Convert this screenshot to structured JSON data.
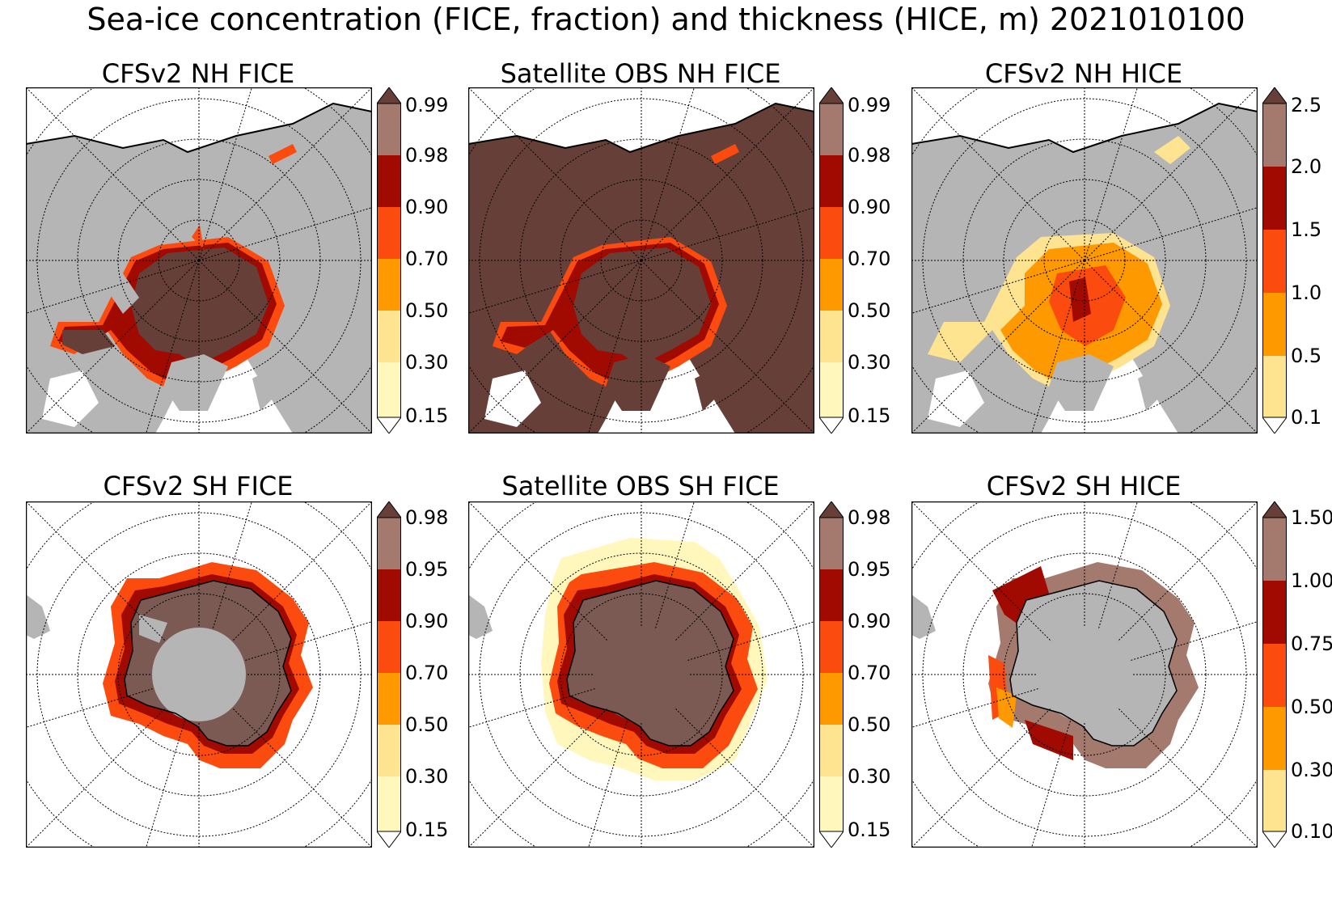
{
  "figure_title": "Sea-ice concentration (FICE, fraction) and thickness (HICE, m) 2021010100",
  "colors": {
    "land": "#b5b5b5",
    "pack_ice": "#664038",
    "ocean": "#ffffff",
    "scale": [
      "#fff7bc",
      "#fee391",
      "#fe9900",
      "#fc4b0e",
      "#a10a00",
      "#a57a6e"
    ],
    "over": "#664038"
  },
  "panels": [
    {
      "title": "CFSv2 NH FICE",
      "hemisphere": "north",
      "variable": "FICE",
      "colorbar_ticks": [
        "0.99",
        "0.98",
        "0.90",
        "0.70",
        "0.50",
        "0.30",
        "0.15"
      ]
    },
    {
      "title": "Satellite OBS NH FICE",
      "hemisphere": "north",
      "variable": "FICE",
      "colorbar_ticks": [
        "0.99",
        "0.98",
        "0.90",
        "0.70",
        "0.50",
        "0.30",
        "0.15"
      ]
    },
    {
      "title": "CFSv2 NH HICE",
      "hemisphere": "north",
      "variable": "HICE",
      "colorbar_ticks": [
        "2.5",
        "2.0",
        "1.5",
        "1.0",
        "0.5",
        "0.1"
      ]
    },
    {
      "title": "CFSv2 SH FICE",
      "hemisphere": "south",
      "variable": "FICE",
      "colorbar_ticks": [
        "0.98",
        "0.95",
        "0.90",
        "0.70",
        "0.50",
        "0.30",
        "0.15"
      ]
    },
    {
      "title": "Satellite OBS SH FICE",
      "hemisphere": "south",
      "variable": "FICE",
      "colorbar_ticks": [
        "0.98",
        "0.95",
        "0.90",
        "0.70",
        "0.50",
        "0.30",
        "0.15"
      ]
    },
    {
      "title": "CFSv2 SH HICE",
      "hemisphere": "south",
      "variable": "HICE",
      "colorbar_ticks": [
        "1.50",
        "1.00",
        "0.75",
        "0.50",
        "0.30",
        "0.10"
      ]
    }
  ]
}
